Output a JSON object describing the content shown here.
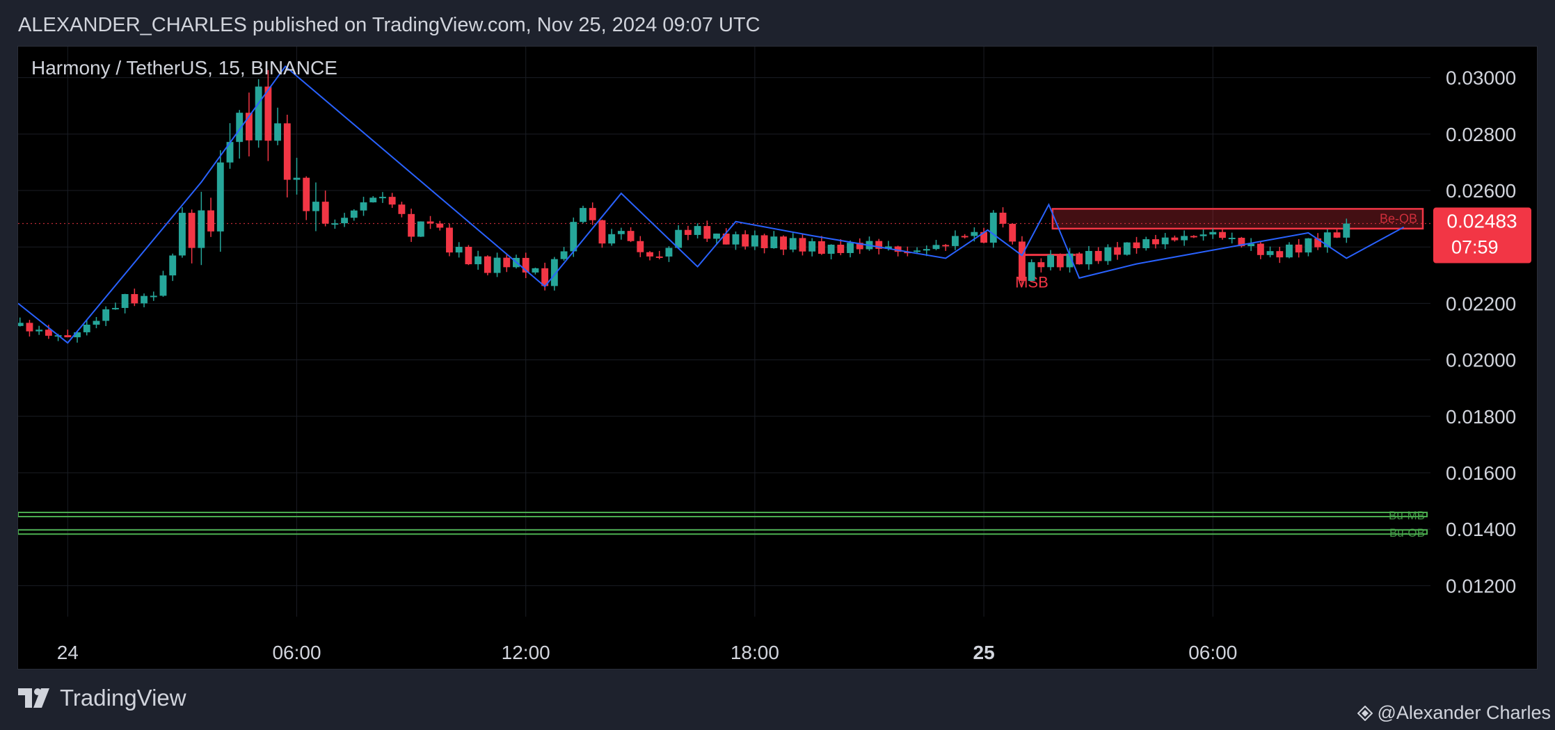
{
  "header": {
    "published_line": "ALEXANDER_CHARLES published on TradingView.com, Nov 25, 2024 09:07 UTC"
  },
  "footer": {
    "brand": "TradingView",
    "brand_icon": "tradingview-logo-icon",
    "author": "@Alexander Charles",
    "author_icon": "diamond-arrows-icon"
  },
  "colors": {
    "up": "#26a69a",
    "down": "#f23645",
    "zigzag": "#2962ff",
    "bullish_zone": "#4caf50",
    "background": "#000000",
    "panel": "#1e222d"
  },
  "chart_data": {
    "type": "candlestick",
    "symbol_label": "Harmony / TetherUS, 15, BINANCE",
    "ylim": [
      0.0109,
      0.0311
    ],
    "y_ticks": [
      "0.03000",
      "0.02800",
      "0.02600",
      "0.02400",
      "0.02200",
      "0.02000",
      "0.01800",
      "0.01600",
      "0.01400",
      "0.01200"
    ],
    "x_ticks": [
      {
        "label": "24",
        "hour": 0,
        "bold": false
      },
      {
        "label": "06:00",
        "hour": 6,
        "bold": false
      },
      {
        "label": "12:00",
        "hour": 12,
        "bold": false
      },
      {
        "label": "18:00",
        "hour": 18,
        "bold": false
      },
      {
        "label": "25",
        "hour": 24,
        "bold": true
      },
      {
        "label": "06:00",
        "hour": 30,
        "bold": false
      }
    ],
    "x_range_hours": [
      -1.3,
      35.7
    ],
    "bar_minutes": 15,
    "first_bar_hour": -1.25,
    "last_price": {
      "value": "0.02483",
      "countdown": "07:59",
      "price": 0.02483
    },
    "close_keys": [
      [
        -1.25,
        0.0212
      ],
      [
        -0.5,
        0.0209
      ],
      [
        0,
        0.0208
      ],
      [
        0.5,
        0.0212
      ],
      [
        1,
        0.0217
      ],
      [
        1.5,
        0.0222
      ],
      [
        2,
        0.0221
      ],
      [
        2.5,
        0.0228
      ],
      [
        3,
        0.025
      ],
      [
        3.5,
        0.0245
      ],
      [
        4,
        0.0262
      ],
      [
        4.25,
        0.0285
      ],
      [
        4.5,
        0.028
      ],
      [
        5,
        0.029
      ],
      [
        5.5,
        0.0278
      ],
      [
        6,
        0.026
      ],
      [
        6.5,
        0.0253
      ],
      [
        7,
        0.0248
      ],
      [
        7.5,
        0.0253
      ],
      [
        8,
        0.0258
      ],
      [
        8.5,
        0.0256
      ],
      [
        9,
        0.0245
      ],
      [
        9.5,
        0.025
      ],
      [
        10,
        0.024
      ],
      [
        10.5,
        0.0236
      ],
      [
        11,
        0.0233
      ],
      [
        11.5,
        0.0235
      ],
      [
        12,
        0.0233
      ],
      [
        12.5,
        0.0228
      ],
      [
        13,
        0.024
      ],
      [
        13.5,
        0.0255
      ],
      [
        14,
        0.0242
      ],
      [
        14.5,
        0.0246
      ],
      [
        15,
        0.0238
      ],
      [
        15.5,
        0.0236
      ],
      [
        16,
        0.0245
      ],
      [
        16.5,
        0.0246
      ],
      [
        17,
        0.0243
      ],
      [
        18,
        0.0242
      ],
      [
        19,
        0.0241
      ],
      [
        20,
        0.0239
      ],
      [
        21,
        0.0241
      ],
      [
        22,
        0.0238
      ],
      [
        23,
        0.0241
      ],
      [
        23.5,
        0.0245
      ],
      [
        24,
        0.0243
      ],
      [
        24.3,
        0.0252
      ],
      [
        24.5,
        0.025
      ],
      [
        24.75,
        0.024
      ],
      [
        25,
        0.023
      ],
      [
        25.5,
        0.0235
      ],
      [
        26,
        0.0235
      ],
      [
        27,
        0.0237
      ],
      [
        28,
        0.0241
      ],
      [
        29,
        0.0243
      ],
      [
        30,
        0.0245
      ],
      [
        31,
        0.024
      ],
      [
        31.5,
        0.0237
      ],
      [
        32,
        0.0239
      ],
      [
        33,
        0.0243
      ],
      [
        33.5,
        0.0248
      ]
    ],
    "zigzag_points": [
      [
        -1.3,
        0.022
      ],
      [
        0,
        0.0206
      ],
      [
        3.5,
        0.0263
      ],
      [
        5.7,
        0.0304
      ],
      [
        12.5,
        0.0226
      ],
      [
        14.5,
        0.0259
      ],
      [
        16.5,
        0.0233
      ],
      [
        17.5,
        0.0249
      ],
      [
        19.5,
        0.0244
      ],
      [
        23,
        0.0236
      ],
      [
        24.1,
        0.0246
      ],
      [
        25,
        0.0237
      ],
      [
        25.7,
        0.0255
      ],
      [
        26.5,
        0.0229
      ],
      [
        28,
        0.0234
      ],
      [
        32.5,
        0.0245
      ],
      [
        33.5,
        0.0236
      ],
      [
        35,
        0.0247
      ]
    ],
    "bearish_ob": {
      "label": "Be-OB",
      "from_hour": 25.8,
      "to_hour": 35.5,
      "top": 0.02535,
      "bottom": 0.02465
    },
    "msb": {
      "label": "MSB",
      "from_hour": 25,
      "to_hour": 26.4,
      "level": 0.02372
    },
    "bullish_lines": [
      {
        "label": "Bu-MB",
        "value": 0.01452
      },
      {
        "label": "Bu-OB",
        "value": 0.0139
      }
    ]
  }
}
